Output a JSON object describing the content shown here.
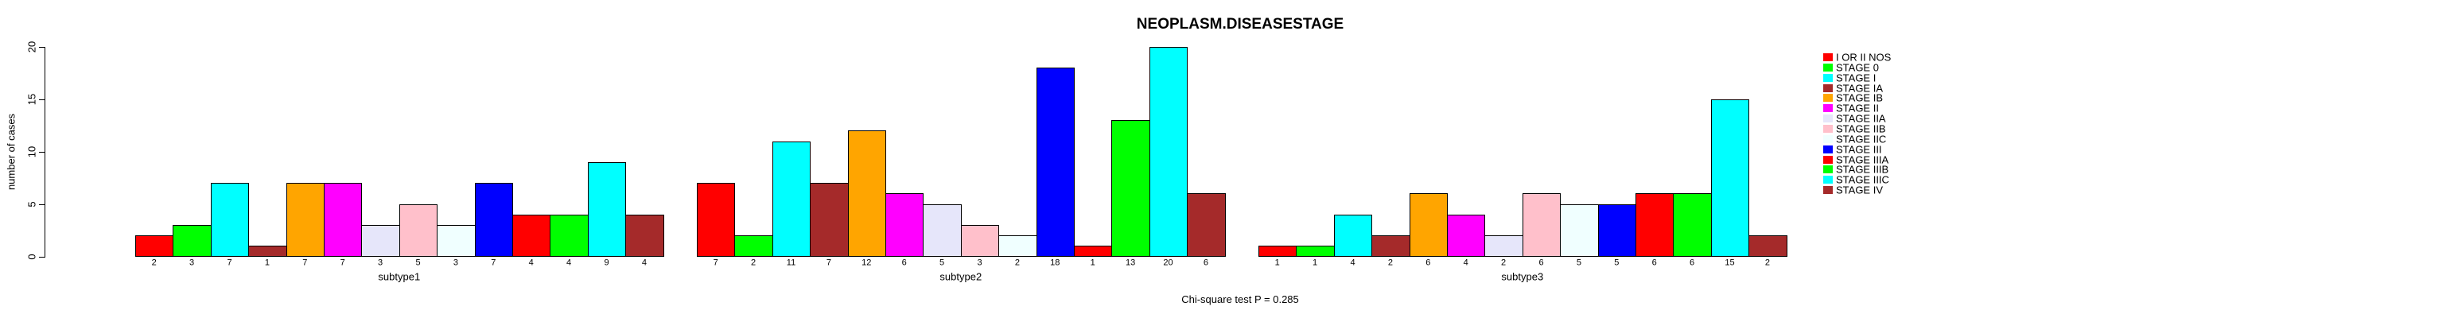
{
  "title": "NEOPLASM.DISEASESTAGE",
  "footnote": "Chi-square test P = 0.285",
  "y_axis": {
    "label": "number of cases",
    "ticks": [
      0,
      5,
      10,
      15,
      20
    ]
  },
  "x_group_labels": [
    "subtype1",
    "subtype2",
    "subtype3"
  ],
  "chart_data": {
    "type": "bar",
    "grouped": true,
    "title": "NEOPLASM.DISEASESTAGE",
    "xlabel": "",
    "ylabel": "number of cases",
    "ylim": [
      0,
      20
    ],
    "yticks": [
      0,
      5,
      10,
      15,
      20
    ],
    "grid": false,
    "legend_position": "right",
    "bar_value_labels_shown": true,
    "footnote": "Chi-square test P = 0.285",
    "categories": [
      "I OR II NOS",
      "STAGE 0",
      "STAGE I",
      "STAGE IA",
      "STAGE IB",
      "STAGE II",
      "STAGE IIA",
      "STAGE IIB",
      "STAGE IIC",
      "STAGE III",
      "STAGE IIIA",
      "STAGE IIIB",
      "STAGE IIIC",
      "STAGE IV"
    ],
    "category_colors": [
      "#FF0000",
      "#00FF00",
      "#00FFFF",
      "#A52A2A",
      "#FFA500",
      "#FF00FF",
      "#E6E6FA",
      "#FFC0CB",
      "#F0FFFF",
      "#0000FF",
      "#FF0000",
      "#00FF00",
      "#00FFFF",
      "#A52A2A"
    ],
    "bar_border_color": "#000000",
    "series": [
      {
        "name": "subtype1",
        "values": [
          2,
          3,
          7,
          1,
          7,
          7,
          3,
          5,
          3,
          7,
          4,
          4,
          9,
          4
        ]
      },
      {
        "name": "subtype2",
        "values": [
          7,
          2,
          11,
          7,
          12,
          6,
          5,
          3,
          2,
          18,
          1,
          13,
          20,
          6
        ]
      },
      {
        "name": "subtype3",
        "values": [
          1,
          1,
          4,
          2,
          6,
          4,
          2,
          6,
          5,
          5,
          6,
          6,
          15,
          2
        ]
      }
    ]
  }
}
